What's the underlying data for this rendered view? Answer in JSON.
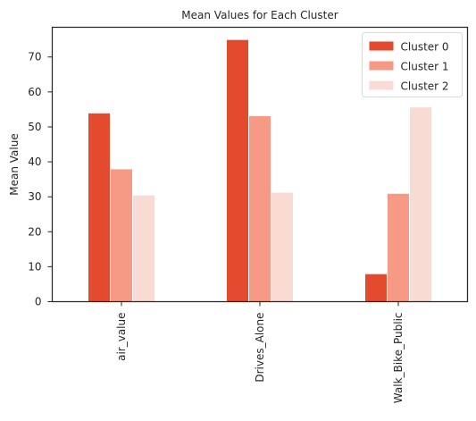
{
  "chart_data": {
    "type": "bar",
    "title": "Mean Values for Each Cluster",
    "xlabel": "",
    "ylabel": "Mean Value",
    "categories": [
      "air_value",
      "Drives_Alone",
      "Walk_Bike_Public"
    ],
    "series": [
      {
        "name": "Cluster 0",
        "values": [
          54.0,
          75.0,
          8.0
        ],
        "color": "#e34a2e"
      },
      {
        "name": "Cluster 1",
        "values": [
          38.0,
          53.2,
          31.0
        ],
        "color": "#f79a85"
      },
      {
        "name": "Cluster 2",
        "values": [
          30.5,
          31.3,
          55.7
        ],
        "color": "#f8dcd4"
      }
    ],
    "yticks": [
      0,
      10,
      20,
      30,
      40,
      50,
      60,
      70
    ],
    "ylim": [
      0,
      78.5
    ],
    "grid": false,
    "legend_position": "top-right"
  }
}
